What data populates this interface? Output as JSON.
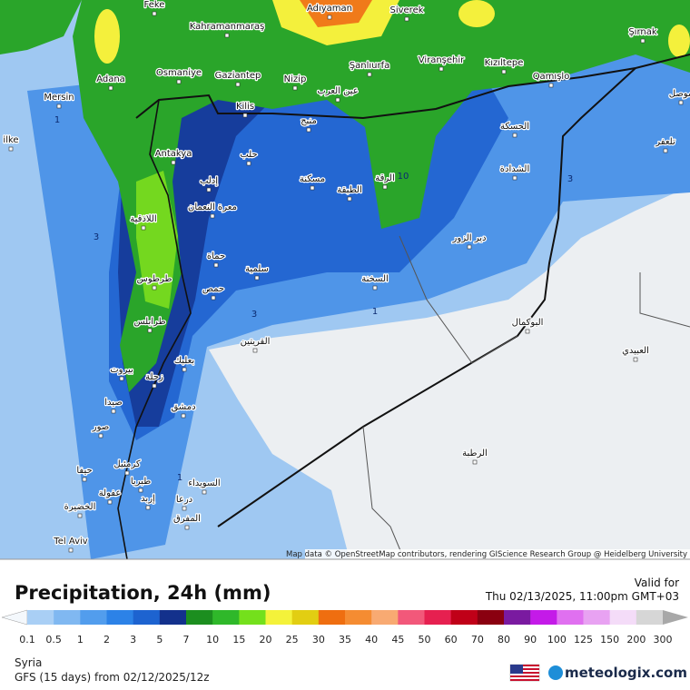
{
  "map": {
    "attribution": "Map data © OpenStreetMap contributors, rendering GIScience Research Group @ Heidelberg University",
    "cities": [
      "Feke",
      "Kahramanmaraş",
      "Adıyaman",
      "Siverek",
      "Şırnak",
      "Mersin",
      "Adana",
      "Osmaniye",
      "Gaziantep",
      "Nizip",
      "Şanlıurfa",
      "Viranşehir",
      "Kızıltepe",
      "Qamışlo",
      "Kilis",
      "Antakya",
      "Tel Aviv",
      "ilke",
      "عين العرب",
      "منبج",
      "حلب",
      "إدلب",
      "الحسكة",
      "الشدادة",
      "الرقة",
      "مسكنة",
      "الطبقة",
      "دير الزور",
      "اللاذقية",
      "معرة النعمان",
      "حماة",
      "سلمية",
      "طرطوس",
      "حمص",
      "السخنة",
      "طرابلس",
      "البوكمال",
      "القريتين",
      "بعلبك",
      "بيروت",
      "زحلة",
      "دمشق",
      "صيدا",
      "صور",
      "الرطبة",
      "حيفا",
      "كرمئيل",
      "طبريا",
      "السويداء",
      "درعا",
      "إربد",
      "عفولة",
      "الخضيرة",
      "المفرق",
      "العبيدي",
      "تلعفر",
      "موصل"
    ],
    "contour_labels": [
      1,
      3,
      10,
      3,
      1,
      3,
      1
    ]
  },
  "legend": {
    "title": "Precipitation, 24h (mm)",
    "ticks": [
      0.1,
      0.5,
      1,
      2,
      3,
      5,
      7,
      10,
      15,
      20,
      25,
      30,
      35,
      40,
      45,
      50,
      60,
      70,
      80,
      90,
      100,
      125,
      150,
      200,
      300
    ],
    "colors": [
      "#a9cff5",
      "#80b8f1",
      "#529ded",
      "#2c82e7",
      "#1d63d0",
      "#13318c",
      "#1c8e1f",
      "#2fb82a",
      "#74e01c",
      "#f4f23a",
      "#e2ce12",
      "#ef6e10",
      "#f58c32",
      "#f8aa72",
      "#f2587a",
      "#e62050",
      "#c00018",
      "#8a0010",
      "#7a1aa0",
      "#c41ae8",
      "#e070f0",
      "#e8a2f2",
      "#f4dcf8",
      "#d6d6d6"
    ]
  },
  "header": {
    "valid_label": "Valid for",
    "valid_time": "Thu 02/13/2025, 11:00pm GMT+03"
  },
  "footer": {
    "region": "Syria",
    "model": "GFS (15 days) from 02/12/2025/12z",
    "brand": "meteologix.com"
  }
}
